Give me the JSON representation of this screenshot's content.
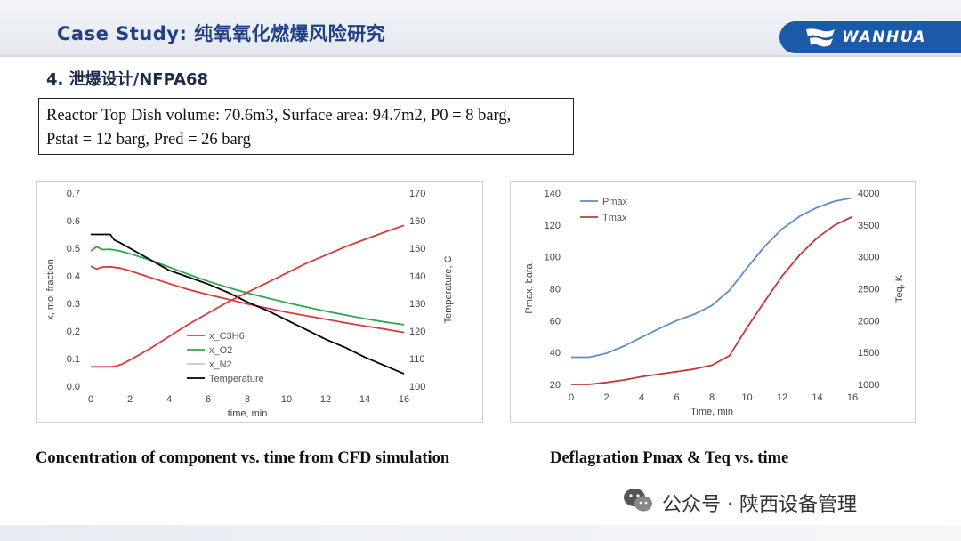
{
  "header": {
    "title": "Case Study: 纯氧氧化燃爆风险研究",
    "logo_text": "WANHUA"
  },
  "section": {
    "title": "4. 泄爆设计/NFPA68"
  },
  "info_box": {
    "line1": "Reactor Top Dish volume: 70.6m3, Surface area: 94.7m2, P0 = 8 barg,",
    "line2": "Pstat = 12 barg, Pred = 26 barg"
  },
  "captions": {
    "left": "Concentration of component vs. time from CFD simulation",
    "right": "Deflagration Pmax & Teq vs. time"
  },
  "watermark": {
    "text": "公众号 · 陕西设备管理"
  },
  "colors": {
    "header_title": "#1f3f88",
    "logo_bg": "#1b5aa8"
  },
  "chart_data": [
    {
      "type": "line",
      "xlabel": "time, min",
      "ylabel": "x, mol fraction",
      "y2label": "Temperature, C",
      "xlim": [
        0,
        16
      ],
      "ylim": [
        0,
        0.7
      ],
      "y2lim": [
        100,
        170
      ],
      "xticks": [
        0,
        2,
        4,
        6,
        8,
        10,
        12,
        14,
        16
      ],
      "yticks": [
        0.0,
        0.1,
        0.2,
        0.3,
        0.4,
        0.5,
        0.6,
        0.7
      ],
      "ytick_labels": [
        "0.0",
        "0.1",
        "0.2",
        "0.3",
        "0.4",
        "0.5",
        "0.6",
        "0.7"
      ],
      "y2ticks": [
        100,
        110,
        120,
        130,
        140,
        150,
        160,
        170
      ],
      "grid": false,
      "legend_position": "lower-left",
      "series": [
        {
          "name": "x_C3H6",
          "color": "#d93b3b",
          "axis": "left",
          "x": [
            0,
            0.3,
            0.6,
            1,
            1.5,
            2,
            3,
            4,
            5,
            6,
            7,
            8,
            9,
            10,
            11,
            12,
            13,
            14,
            15,
            16
          ],
          "y": [
            0.435,
            0.425,
            0.432,
            0.433,
            0.428,
            0.418,
            0.395,
            0.372,
            0.35,
            0.332,
            0.315,
            0.298,
            0.283,
            0.268,
            0.255,
            0.243,
            0.23,
            0.218,
            0.207,
            0.195
          ]
        },
        {
          "name": "x_O2",
          "color": "#2fa650",
          "axis": "left",
          "x": [
            0,
            0.3,
            0.6,
            1,
            1.5,
            2,
            3,
            4,
            5,
            6,
            7,
            8,
            9,
            10,
            11,
            12,
            13,
            14,
            15,
            16
          ],
          "y": [
            0.49,
            0.505,
            0.495,
            0.496,
            0.49,
            0.48,
            0.458,
            0.432,
            0.405,
            0.38,
            0.358,
            0.338,
            0.32,
            0.303,
            0.287,
            0.272,
            0.258,
            0.245,
            0.233,
            0.223
          ]
        },
        {
          "name": "x_N2",
          "color": "#c8c8c8",
          "axis": "left",
          "x": [],
          "y": []
        },
        {
          "name": "Temperature",
          "color": "#000000",
          "axis": "right",
          "x": [
            0,
            0.5,
            1,
            1.2,
            1.5,
            2,
            3,
            4,
            5,
            6,
            7,
            8,
            9,
            10,
            11,
            12,
            13,
            14,
            15,
            16
          ],
          "y": [
            155,
            155,
            155,
            153,
            152,
            150,
            146,
            142,
            139.5,
            137,
            134,
            130.5,
            127.5,
            124,
            120.5,
            117,
            114,
            110.5,
            107.5,
            104.5
          ]
        },
        {
          "name": "T_rise",
          "color": "#d93b3b",
          "axis": "right",
          "legend": false,
          "x": [
            0,
            0.5,
            1,
            1.3,
            1.6,
            2,
            3,
            4,
            5,
            6,
            7,
            8,
            9,
            10,
            11,
            12,
            13,
            14,
            15,
            16
          ],
          "y": [
            107,
            107,
            107,
            107.3,
            108,
            109.5,
            113.5,
            118,
            122.5,
            126.5,
            130.5,
            134,
            137.5,
            141,
            144.5,
            147.5,
            150.5,
            153.2,
            155.8,
            158.3
          ]
        }
      ]
    },
    {
      "type": "line",
      "xlabel": "Time, min",
      "ylabel": "Pmax, bara",
      "y2label": "Teq, K",
      "xlim": [
        0,
        16
      ],
      "ylim": [
        20,
        140
      ],
      "y2lim": [
        1000,
        4000
      ],
      "xticks": [
        0,
        2,
        4,
        6,
        8,
        10,
        12,
        14,
        16
      ],
      "yticks": [
        20,
        40,
        60,
        80,
        100,
        120,
        140
      ],
      "y2ticks": [
        1000,
        1500,
        2000,
        2500,
        3000,
        3500,
        4000
      ],
      "grid": false,
      "legend_position": "top-left",
      "series": [
        {
          "name": "Pmax",
          "color": "#5b8dc8",
          "axis": "left",
          "x": [
            0,
            1,
            2,
            3,
            4,
            5,
            6,
            7,
            8,
            9,
            10,
            11,
            12,
            13,
            14,
            15,
            16
          ],
          "y": [
            37,
            37,
            39.5,
            44,
            49.5,
            55,
            60,
            64,
            69.5,
            79,
            93,
            106.5,
            117.5,
            125.5,
            131,
            135,
            137
          ]
        },
        {
          "name": "Tmax",
          "color": "#c0393b",
          "axis": "right",
          "x": [
            0,
            1,
            2,
            3,
            4,
            5,
            6,
            7,
            8,
            9,
            10,
            11,
            12,
            13,
            14,
            15,
            16
          ],
          "y": [
            1000,
            1000,
            1030,
            1070,
            1120,
            1160,
            1200,
            1240,
            1300,
            1450,
            1890,
            2300,
            2700,
            3030,
            3300,
            3500,
            3630
          ]
        }
      ]
    }
  ]
}
